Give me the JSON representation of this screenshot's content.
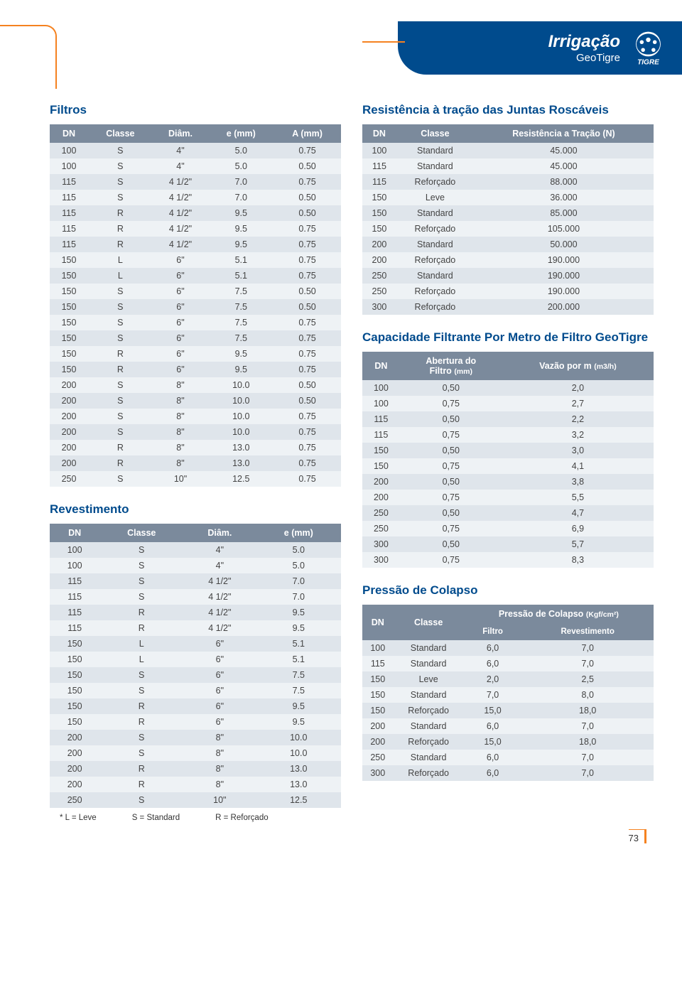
{
  "header": {
    "title": "Irrigação",
    "subtitle": "GeoTigre",
    "logo_text": "TIGRE"
  },
  "page_number": "73",
  "colors": {
    "brand_blue": "#004b8d",
    "header_row": "#7b8a9c",
    "row_odd": "#dfe5eb",
    "row_even": "#eef2f5",
    "accent_orange": "#f58220",
    "text": "#3a3a3a",
    "white": "#ffffff"
  },
  "filtros": {
    "title": "Filtros",
    "columns": [
      "DN",
      "Classe",
      "Diâm.",
      "e (mm)",
      "A (mm)"
    ],
    "rows": [
      [
        "100",
        "S",
        "4\"",
        "5.0",
        "0.75"
      ],
      [
        "100",
        "S",
        "4\"",
        "5.0",
        "0.50"
      ],
      [
        "115",
        "S",
        "4 1/2\"",
        "7.0",
        "0.75"
      ],
      [
        "115",
        "S",
        "4 1/2\"",
        "7.0",
        "0.50"
      ],
      [
        "115",
        "R",
        "4 1/2\"",
        "9.5",
        "0.50"
      ],
      [
        "115",
        "R",
        "4 1/2\"",
        "9.5",
        "0.75"
      ],
      [
        "115",
        "R",
        "4 1/2\"",
        "9.5",
        "0.75"
      ],
      [
        "150",
        "L",
        "6\"",
        "5.1",
        "0.75"
      ],
      [
        "150",
        "L",
        "6\"",
        "5.1",
        "0.75"
      ],
      [
        "150",
        "S",
        "6\"",
        "7.5",
        "0.50"
      ],
      [
        "150",
        "S",
        "6\"",
        "7.5",
        "0.50"
      ],
      [
        "150",
        "S",
        "6\"",
        "7.5",
        "0.75"
      ],
      [
        "150",
        "S",
        "6\"",
        "7.5",
        "0.75"
      ],
      [
        "150",
        "R",
        "6\"",
        "9.5",
        "0.75"
      ],
      [
        "150",
        "R",
        "6\"",
        "9.5",
        "0.75"
      ],
      [
        "200",
        "S",
        "8\"",
        "10.0",
        "0.50"
      ],
      [
        "200",
        "S",
        "8\"",
        "10.0",
        "0.50"
      ],
      [
        "200",
        "S",
        "8\"",
        "10.0",
        "0.75"
      ],
      [
        "200",
        "S",
        "8\"",
        "10.0",
        "0.75"
      ],
      [
        "200",
        "R",
        "8\"",
        "13.0",
        "0.75"
      ],
      [
        "200",
        "R",
        "8\"",
        "13.0",
        "0.75"
      ],
      [
        "250",
        "S",
        "10\"",
        "12.5",
        "0.75"
      ]
    ]
  },
  "revestimento": {
    "title": "Revestimento",
    "columns": [
      "DN",
      "Classe",
      "Diâm.",
      "e (mm)"
    ],
    "rows": [
      [
        "100",
        "S",
        "4\"",
        "5.0"
      ],
      [
        "100",
        "S",
        "4\"",
        "5.0"
      ],
      [
        "115",
        "S",
        "4 1/2\"",
        "7.0"
      ],
      [
        "115",
        "S",
        "4 1/2\"",
        "7.0"
      ],
      [
        "115",
        "R",
        "4 1/2\"",
        "9.5"
      ],
      [
        "115",
        "R",
        "4 1/2\"",
        "9.5"
      ],
      [
        "150",
        "L",
        "6\"",
        "5.1"
      ],
      [
        "150",
        "L",
        "6\"",
        "5.1"
      ],
      [
        "150",
        "S",
        "6\"",
        "7.5"
      ],
      [
        "150",
        "S",
        "6\"",
        "7.5"
      ],
      [
        "150",
        "R",
        "6\"",
        "9.5"
      ],
      [
        "150",
        "R",
        "6\"",
        "9.5"
      ],
      [
        "200",
        "S",
        "8\"",
        "10.0"
      ],
      [
        "200",
        "S",
        "8\"",
        "10.0"
      ],
      [
        "200",
        "R",
        "8\"",
        "13.0"
      ],
      [
        "200",
        "R",
        "8\"",
        "13.0"
      ],
      [
        "250",
        "S",
        "10\"",
        "12.5"
      ]
    ],
    "legend": {
      "l": "* L = Leve",
      "s": "S = Standard",
      "r": "R = Reforçado"
    }
  },
  "resistencia": {
    "title": "Resistência à tração das Juntas Roscáveis",
    "columns": [
      "DN",
      "Classe",
      "Resistência a Tração (N)"
    ],
    "rows": [
      [
        "100",
        "Standard",
        "45.000"
      ],
      [
        "115",
        "Standard",
        "45.000"
      ],
      [
        "115",
        "Reforçado",
        "88.000"
      ],
      [
        "150",
        "Leve",
        "36.000"
      ],
      [
        "150",
        "Standard",
        "85.000"
      ],
      [
        "150",
        "Reforçado",
        "105.000"
      ],
      [
        "200",
        "Standard",
        "50.000"
      ],
      [
        "200",
        "Reforçado",
        "190.000"
      ],
      [
        "250",
        "Standard",
        "190.000"
      ],
      [
        "250",
        "Reforçado",
        "190.000"
      ],
      [
        "300",
        "Reforçado",
        "200.000"
      ]
    ]
  },
  "capacidade": {
    "title": "Capacidade Filtrante Por Metro de Filtro GeoTigre",
    "columns": [
      "DN",
      "Abertura do Filtro (mm)",
      "Vazão por m (m3/h)"
    ],
    "col2_line1": "Abertura do",
    "col2_line2": "Filtro",
    "col2_unit": "(mm)",
    "col3_label": "Vazão por m",
    "col3_unit": "(m3/h)",
    "rows": [
      [
        "100",
        "0,50",
        "2,0"
      ],
      [
        "100",
        "0,75",
        "2,7"
      ],
      [
        "115",
        "0,50",
        "2,2"
      ],
      [
        "115",
        "0,75",
        "3,2"
      ],
      [
        "150",
        "0,50",
        "3,0"
      ],
      [
        "150",
        "0,75",
        "4,1"
      ],
      [
        "200",
        "0,50",
        "3,8"
      ],
      [
        "200",
        "0,75",
        "5,5"
      ],
      [
        "250",
        "0,50",
        "4,7"
      ],
      [
        "250",
        "0,75",
        "6,9"
      ],
      [
        "300",
        "0,50",
        "5,7"
      ],
      [
        "300",
        "0,75",
        "8,3"
      ]
    ]
  },
  "colapso": {
    "title": "Pressão de Colapso",
    "header_top": "Pressão de Colapso",
    "header_unit": "(Kgf/cm²)",
    "columns": [
      "DN",
      "Classe",
      "Filtro",
      "Revestimento"
    ],
    "rows": [
      [
        "100",
        "Standard",
        "6,0",
        "7,0"
      ],
      [
        "115",
        "Standard",
        "6,0",
        "7,0"
      ],
      [
        "150",
        "Leve",
        "2,0",
        "2,5"
      ],
      [
        "150",
        "Standard",
        "7,0",
        "8,0"
      ],
      [
        "150",
        "Reforçado",
        "15,0",
        "18,0"
      ],
      [
        "200",
        "Standard",
        "6,0",
        "7,0"
      ],
      [
        "200",
        "Reforçado",
        "15,0",
        "18,0"
      ],
      [
        "250",
        "Standard",
        "6,0",
        "7,0"
      ],
      [
        "300",
        "Reforçado",
        "6,0",
        "7,0"
      ]
    ]
  }
}
